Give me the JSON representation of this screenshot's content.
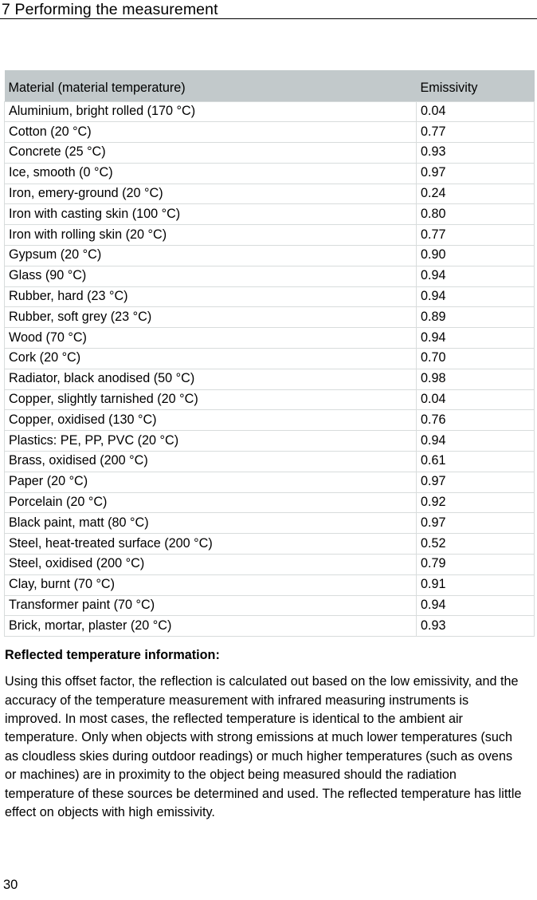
{
  "page": {
    "header_title": "7 Performing the measurement",
    "page_number": "30"
  },
  "table": {
    "columns": {
      "material": "Material (material temperature)",
      "emissivity": "Emissivity"
    },
    "rows": [
      {
        "material": "Aluminium, bright rolled (170 °C)",
        "emissivity": "0.04"
      },
      {
        "material": "Cotton (20 °C)",
        "emissivity": "0.77"
      },
      {
        "material": "Concrete (25 °C)",
        "emissivity": "0.93"
      },
      {
        "material": "Ice, smooth (0 °C)",
        "emissivity": "0.97"
      },
      {
        "material": "Iron, emery-ground (20 °C)",
        "emissivity": "0.24"
      },
      {
        "material": "Iron with casting skin (100 °C)",
        "emissivity": "0.80"
      },
      {
        "material": "Iron with rolling skin (20 °C)",
        "emissivity": "0.77"
      },
      {
        "material": "Gypsum (20 °C)",
        "emissivity": "0.90"
      },
      {
        "material": "Glass (90 °C)",
        "emissivity": "0.94"
      },
      {
        "material": "Rubber, hard (23 °C)",
        "emissivity": "0.94"
      },
      {
        "material": "Rubber, soft grey (23 °C)",
        "emissivity": "0.89"
      },
      {
        "material": "Wood (70 °C)",
        "emissivity": "0.94"
      },
      {
        "material": "Cork (20 °C)",
        "emissivity": "0.70"
      },
      {
        "material": "Radiator, black anodised (50 °C)",
        "emissivity": "0.98"
      },
      {
        "material": "Copper, slightly tarnished (20 °C)",
        "emissivity": "0.04"
      },
      {
        "material": "Copper, oxidised (130 °C)",
        "emissivity": "0.76"
      },
      {
        "material": "Plastics: PE, PP, PVC (20 °C)",
        "emissivity": "0.94"
      },
      {
        "material": "Brass, oxidised (200 °C)",
        "emissivity": "0.61"
      },
      {
        "material": "Paper (20 °C)",
        "emissivity": "0.97"
      },
      {
        "material": "Porcelain (20 °C)",
        "emissivity": "0.92"
      },
      {
        "material": "Black paint, matt (80 °C)",
        "emissivity": "0.97"
      },
      {
        "material": "Steel, heat-treated surface (200 °C)",
        "emissivity": "0.52"
      },
      {
        "material": "Steel, oxidised (200 °C)",
        "emissivity": "0.79"
      },
      {
        "material": "Clay, burnt (70 °C)",
        "emissivity": "0.91"
      },
      {
        "material": "Transformer paint (70 °C)",
        "emissivity": "0.94"
      },
      {
        "material": "Brick, mortar, plaster (20 °C)",
        "emissivity": "0.93"
      }
    ]
  },
  "section": {
    "heading": "Reflected temperature information:",
    "body": "Using this offset factor, the reflection is calculated out based on the low emissivity, and the accuracy of the temperature measurement with infrared measuring instruments is improved. In most cases, the reflected temperature is identical to the ambient air temperature. Only when objects with strong emissions at much lower temperatures (such as cloudless skies during outdoor readings) or much higher temperatures (such as ovens or machines) are in proximity to the object being measured should the radiation temperature of these sources be determined and used. The reflected temperature has little effect on objects with high emissivity."
  },
  "colors": {
    "table_header_bg": "#c2c9cb",
    "table_border": "#d8dcdc",
    "rule": "#000000"
  }
}
